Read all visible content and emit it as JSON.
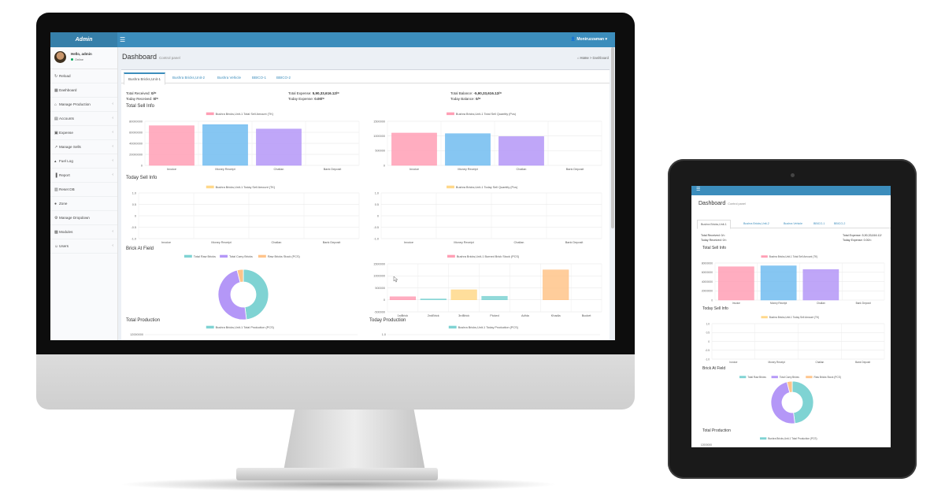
{
  "app": {
    "logo": "Admin",
    "user_name": "Moniruzzaman",
    "greeting": "Hello, admin",
    "status": "Online",
    "page_title": "Dashboard",
    "page_subtitle": "Control panel",
    "breadcrumb": [
      "Home",
      "Dashboard"
    ]
  },
  "sidebar": {
    "items": [
      {
        "label": "Reload",
        "icon": "refresh-icon",
        "has_children": false
      },
      {
        "label": "Dashboard",
        "icon": "dashboard-icon",
        "has_children": false
      },
      {
        "label": "Manage Production",
        "icon": "factory-icon",
        "has_children": true
      },
      {
        "label": "Accounts",
        "icon": "book-icon",
        "has_children": true
      },
      {
        "label": "Expense",
        "icon": "money-icon",
        "has_children": true
      },
      {
        "label": "Manage Sells",
        "icon": "chart-icon",
        "has_children": true
      },
      {
        "label": "Fuel Log",
        "icon": "flame-icon",
        "has_children": true
      },
      {
        "label": "Report",
        "icon": "bar-chart-icon",
        "has_children": true
      },
      {
        "label": "Reset DB",
        "icon": "database-icon",
        "has_children": false
      },
      {
        "label": "Zone",
        "icon": "globe-icon",
        "has_children": false
      },
      {
        "label": "Manage Dropdown",
        "icon": "gear-icon",
        "has_children": false
      },
      {
        "label": "Modules",
        "icon": "cubes-icon",
        "has_children": true
      },
      {
        "label": "Users",
        "icon": "user-icon",
        "has_children": true
      }
    ]
  },
  "tabs": [
    "Bushra Bricks,Unit-1",
    "Bushra Bricks,Unit-2",
    "Bushra Vehicle",
    "BBICO-1",
    "BBICO-2"
  ],
  "stats": {
    "total_received_label": "Total Received:",
    "total_received": "0/=",
    "today_received_label": "Today Received:",
    "today_received": "0/=",
    "total_expense_label": "Total Expense:",
    "total_expense": "5,90,33,616.12/=",
    "today_expense_label": "Today Expense:",
    "today_expense": "0.00/=",
    "total_balance_label": "Total Balance:",
    "total_balance": "-5,90,33,616.12/=",
    "today_balance_label": "Today Balance:",
    "today_balance": "0/="
  },
  "sections": {
    "total_sell": "Total Sell Info",
    "today_sell": "Today Sell Info",
    "brick_field": "Brick At Field",
    "total_production": "Total Production",
    "today_production": "Today Production"
  },
  "colors": {
    "accent": "#3c8dbc",
    "pink": "#ff9fb5",
    "blue": "#71bcf0",
    "purple": "#b497f7",
    "yellow": "#ffd88a",
    "teal": "#7fd3d3",
    "orange": "#ffc48a"
  },
  "chart_data": [
    {
      "type": "bar",
      "legend": "Bushra Bricks,Unit-1 Total Sell Amount (TK)",
      "categories": [
        "Invoice",
        "Money Receipt",
        "Challan",
        "Bank Deposit"
      ],
      "values": [
        72000000,
        74000000,
        66000000,
        0
      ],
      "ylim": [
        0,
        80000000
      ],
      "yticks": [
        "80000000",
        "60000000",
        "40000000",
        "20000000",
        "0"
      ],
      "colors": [
        "#ff9fb5",
        "#71bcf0",
        "#b497f7",
        "#cccccc"
      ]
    },
    {
      "type": "bar",
      "legend": "Bushra Bricks,Unit-1 Total Sell Quantity (Pcs)",
      "categories": [
        "Invoice",
        "Money Receipt",
        "Challan",
        "Bank Deposit"
      ],
      "values": [
        1100000,
        1080000,
        980000,
        0
      ],
      "ylim": [
        0,
        1500000
      ],
      "yticks": [
        "1500000",
        "1000000",
        "500000",
        "0"
      ],
      "colors": [
        "#ff9fb5",
        "#71bcf0",
        "#b497f7",
        "#cccccc"
      ]
    },
    {
      "type": "bar",
      "legend": "Bushra Bricks,Unit-1 Today Sell Amount (TK)",
      "categories": [
        "Invoice",
        "Money Receipt",
        "Challan",
        "Bank Deposit"
      ],
      "values": [
        0,
        0,
        0,
        0
      ],
      "ylim": [
        -1,
        1
      ],
      "yticks": [
        "1.0",
        "0.5",
        "0",
        "-0.5",
        "-1.0"
      ]
    },
    {
      "type": "bar",
      "legend": "Bushra Bricks,Unit-1 Today Sell Quantity (Pcs)",
      "categories": [
        "Invoice",
        "Money Receipt",
        "Challan",
        "Bank Deposit"
      ],
      "values": [
        0,
        0,
        0,
        0
      ],
      "ylim": [
        -1,
        1
      ],
      "yticks": [
        "1.0",
        "0.5",
        "0",
        "-0.5",
        "-1.0"
      ]
    },
    {
      "type": "pie",
      "legend": [
        "Total Raw Bricks",
        "Total Carry Bricks",
        "Raw Bricks Stock (PCS)"
      ],
      "values": [
        48,
        48,
        4
      ],
      "colors": [
        "#7fd3d3",
        "#b497f7",
        "#ffc48a"
      ]
    },
    {
      "type": "bar",
      "legend": "Bushra Bricks,Unit-1 Burned Brick Stock (PCS)",
      "categories": [
        "1stBrick",
        "2ndBrick",
        "3rdBrick",
        "Picked",
        "Adhla",
        "Khadla",
        "Bucket"
      ],
      "values": [
        130000,
        40000,
        420000,
        150000,
        0,
        1250000,
        0
      ],
      "ylim": [
        -500000,
        1500000
      ],
      "yticks": [
        "1500000",
        "1000000",
        "500000",
        "0",
        "-500000"
      ],
      "colors": [
        "#ff9fb5",
        "#7fd3d3",
        "#ffd88a",
        "#7fd3d3",
        "#cccccc",
        "#ffc48a",
        "#cccccc"
      ]
    },
    {
      "type": "bar",
      "legend": "Bushra Bricks,Unit-1 Total Production (PCS)",
      "yticks": [
        "12000000"
      ]
    },
    {
      "type": "bar",
      "legend": "Bushra Bricks,Unit-1 Today Production (PCS)",
      "yticks": [
        "1.0"
      ]
    }
  ],
  "tablet": {
    "page_title": "Dashboard",
    "page_subtitle": "Control panel",
    "tabs": [
      "Bushra Bricks,Unit-1",
      "Bushra Bricks,Unit-2",
      "Bushra Vehicle",
      "BBICO-1",
      "BBICO-2"
    ],
    "total_received": "Total Received: 0/=",
    "today_received": "Today Received: 0/=",
    "total_expense": "Total Expense: 5,90,33,616.12/",
    "today_expense": "Today Expense: 0.00/=",
    "sections": [
      "Total Sell Info",
      "Today Sell Info",
      "Brick At Field",
      "Total Production"
    ],
    "sell_legend": "Bushra Bricks,Unit-1 Total Sell Amount (TK)",
    "today_legend": "Bushra Bricks,Unit-1 Today Sell Amount (TK)",
    "pie_legend": [
      "Total Raw Bricks",
      "Total Carry Bricks",
      "Raw Bricks Stock (PCS)"
    ],
    "prod_legend": "Bushra Bricks,Unit-1 Total Production (PCS)",
    "prod_tick": "12000000",
    "bar_yticks": [
      "80000000",
      "60000000",
      "40000000",
      "20000000",
      "0"
    ],
    "today_yticks": [
      "1.0",
      "0.5",
      "0",
      "-0.5",
      "-1.0"
    ],
    "categories": [
      "Invoice",
      "Money Receipt",
      "Challan",
      "Bank Deposit"
    ],
    "values": [
      72000000,
      74000000,
      66000000,
      0
    ],
    "pie_values": [
      48,
      48,
      4
    ]
  }
}
